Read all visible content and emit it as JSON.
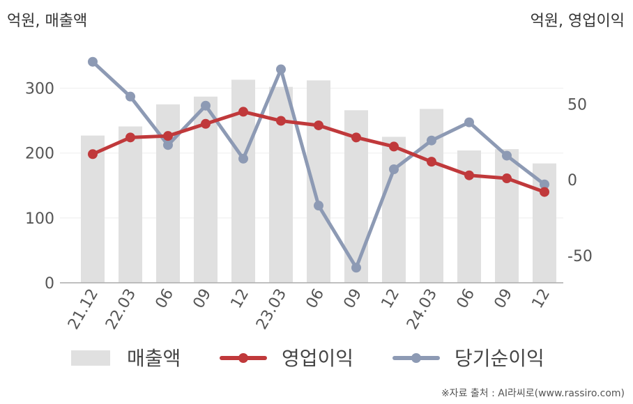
{
  "units": {
    "left": "억원, 매출액",
    "right": "억원, 영업이익"
  },
  "source": "※자료 출처 : AI라씨로(www.rassiro.com)",
  "colors": {
    "revenue": "#e0e0e0",
    "operating_profit": "#c0393b",
    "net_profit": "#8d9ab4",
    "axis": "#aaaaaa",
    "grid": "#eeeeee"
  },
  "chart_data": {
    "type": "bar+line",
    "categories": [
      "21.12",
      "22.03",
      "06",
      "09",
      "12",
      "23.03",
      "06",
      "09",
      "12",
      "24.03",
      "06",
      "09",
      "12"
    ],
    "left_axis": {
      "ylim": [
        0,
        350
      ],
      "ticks": [
        0,
        100,
        200,
        300
      ]
    },
    "right_axis": {
      "ylim": [
        -68,
        82
      ],
      "ticks": [
        -50,
        0,
        50
      ]
    },
    "series": [
      {
        "name": "매출액",
        "type": "bar",
        "axis": "left",
        "values": [
          227,
          241,
          275,
          287,
          313,
          302,
          312,
          266,
          225,
          268,
          204,
          206,
          184
        ]
      },
      {
        "name": "영업이익",
        "type": "line",
        "axis": "right",
        "values": [
          17,
          28,
          29,
          37,
          45,
          39,
          36,
          28,
          22,
          12,
          3,
          1,
          -8
        ]
      },
      {
        "name": "당기순이익",
        "type": "line",
        "axis": "right",
        "values": [
          78,
          55,
          23,
          49,
          14,
          73,
          -17,
          -58,
          7,
          26,
          38,
          16,
          -3
        ]
      }
    ],
    "legend_position": "bottom",
    "grid": true
  }
}
